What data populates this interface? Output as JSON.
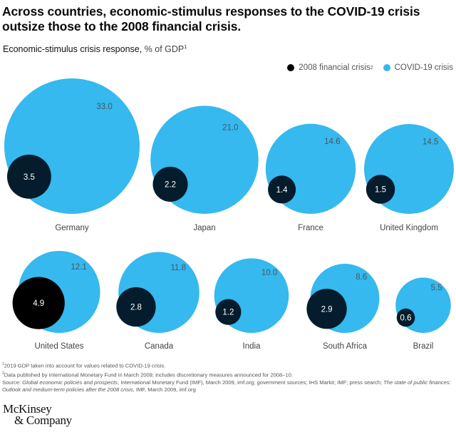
{
  "title": "Across countries, economic-stimulus responses to the COVID-19 crisis outsize those to the 2008 financial crisis.",
  "subtitle": {
    "main": "Economic-stimulus crisis response,",
    "unit": " % of GDP",
    "footnote_ref": "1"
  },
  "legend": {
    "items": [
      {
        "label": "2008 financial crisis",
        "footnote_ref": "2",
        "color": "#051c2c"
      },
      {
        "label": "COVID-19 crisis",
        "footnote_ref": "",
        "color": "#35b9ee"
      }
    ]
  },
  "colors": {
    "covid": "#35b9ee",
    "crisis2008": "#051c2c",
    "crisis2008_highlight": "#000000",
    "value_text_on_blue": "#4a5560",
    "value_text_on_dark": "#ffffff",
    "label_text": "#444444"
  },
  "chart_data": {
    "type": "bubble",
    "title": "Economic-stimulus crisis response, % of GDP",
    "unit": "% of GDP",
    "legend_position": "top-right",
    "series_names": [
      "2008 financial crisis",
      "COVID-19 crisis"
    ],
    "categories": [
      "Germany",
      "Japan",
      "France",
      "United Kingdom",
      "United States",
      "Canada",
      "India",
      "South Africa",
      "Brazil"
    ],
    "series": [
      {
        "name": "2008 financial crisis",
        "values": [
          3.5,
          2.2,
          1.4,
          1.5,
          4.9,
          2.8,
          1.2,
          2.9,
          0.6
        ]
      },
      {
        "name": "COVID-19 crisis",
        "values": [
          33.0,
          21.0,
          14.6,
          14.5,
          12.1,
          11.8,
          10.0,
          8.6,
          5.5
        ]
      }
    ],
    "labels_2008": [
      "3.5",
      "2.2",
      "1.4",
      "1.5",
      "4.9",
      "2.8",
      "1.2",
      "2.9",
      "0.6"
    ],
    "labels_covid": [
      "33.0",
      "21.0",
      "14.6",
      "14.5",
      "12.1",
      "11.8",
      "10.0",
      "8.6",
      "5.5"
    ],
    "highlighted_country": "United States"
  },
  "footnotes": {
    "note1_ref": "1",
    "note1": "2019 GDP taken into account for values related to COVID-19 crisis.",
    "note2_ref": "2",
    "note2": "Data published by International Monetary Fund in March 2009; includes discretionary measures announced for 2008–10.",
    "source_prefix": "Source: ",
    "source_italic1": "Global economic policies and prospects",
    "source_mid": ", International Monetary Fund (IMF), March 2009, imf.org; government sources; IHS Markit; IMF; press search; ",
    "source_italic2": "The state of public finances: Outlook and medium-term policies after the 2008 crisis",
    "source_end": ", IMF, March 2009, imf.org"
  },
  "logo": {
    "line1": "McKinsey",
    "line2": "& Company"
  }
}
